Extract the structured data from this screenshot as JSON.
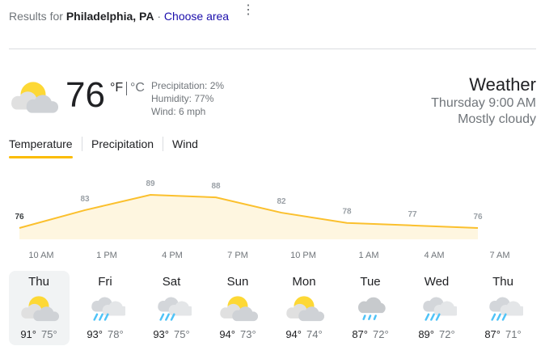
{
  "header": {
    "prefix": "Results for",
    "location": "Philadelphia, PA",
    "separator": "·",
    "link": "Choose area"
  },
  "current": {
    "icon": "partly-cloudy",
    "temperature": "76",
    "unit_f": "°F",
    "unit_c": "°C",
    "precipitation": "Precipitation: 2%",
    "humidity": "Humidity: 77%",
    "wind": "Wind: 6 mph"
  },
  "summary": {
    "title": "Weather",
    "time": "Thursday 9:00 AM",
    "condition": "Mostly cloudy"
  },
  "tabs": [
    "Temperature",
    "Precipitation",
    "Wind"
  ],
  "hourly_chart": {
    "type": "area",
    "values": [
      76,
      83,
      89,
      88,
      82,
      78,
      77,
      76
    ],
    "times": [
      "10 AM",
      "1 PM",
      "4 PM",
      "7 PM",
      "10 PM",
      "1 AM",
      "4 AM",
      "7 AM"
    ],
    "color": "#fbc02d"
  },
  "days": [
    {
      "day": "Thu",
      "icon": "partly-cloudy",
      "high": "91°",
      "low": "75°"
    },
    {
      "day": "Fri",
      "icon": "showers",
      "high": "93°",
      "low": "78°"
    },
    {
      "day": "Sat",
      "icon": "showers",
      "high": "93°",
      "low": "75°"
    },
    {
      "day": "Sun",
      "icon": "partly-cloudy",
      "high": "94°",
      "low": "73°"
    },
    {
      "day": "Mon",
      "icon": "partly-cloudy",
      "high": "94°",
      "low": "74°"
    },
    {
      "day": "Tue",
      "icon": "rain",
      "high": "87°",
      "low": "72°"
    },
    {
      "day": "Wed",
      "icon": "showers",
      "high": "89°",
      "low": "72°"
    },
    {
      "day": "Thu",
      "icon": "showers",
      "high": "87°",
      "low": "71°"
    }
  ]
}
